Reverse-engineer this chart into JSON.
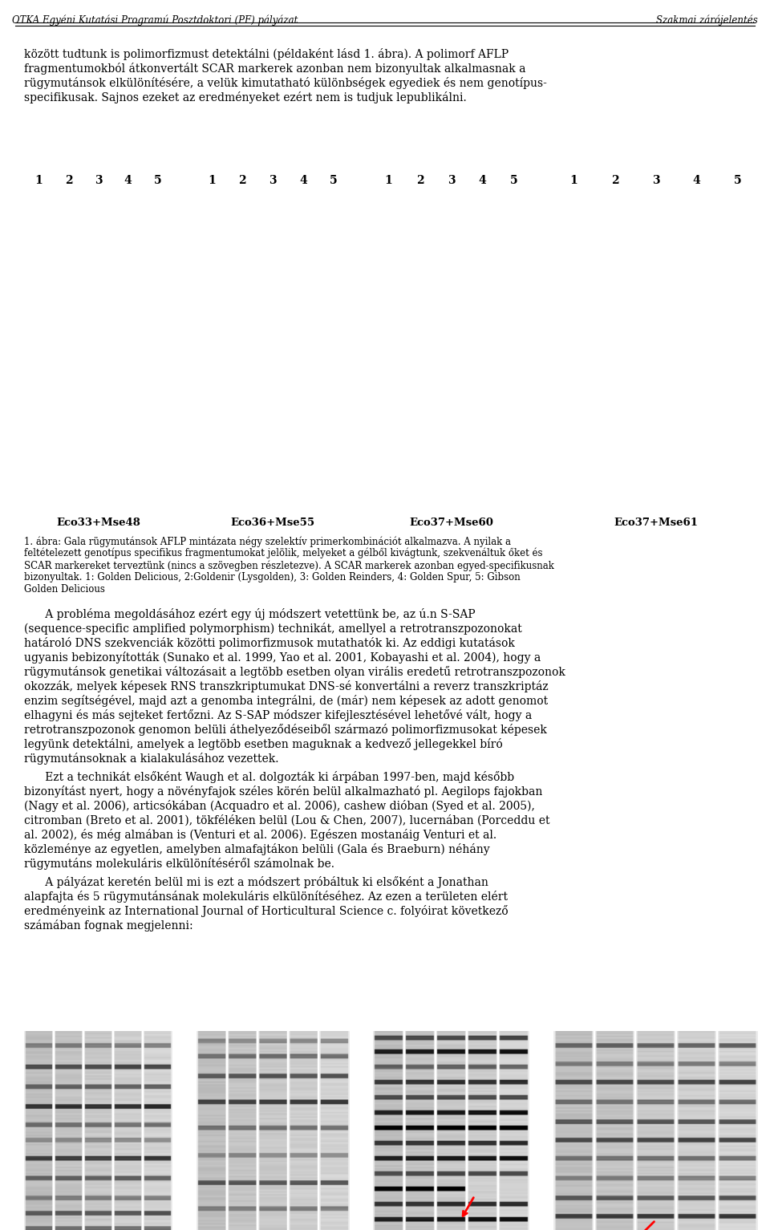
{
  "header_left": "OTKA Egyéni Kutatási Programú Posztdoktori (PF) pályázat",
  "header_right": "Szakmai zárójelentés",
  "intro_text": "között tudtunk is polimorfizmust detektálni (példaként lásd 1. ábra). A polimorf AFLP fragmentumokból átkonvertált SCAR markerek azonban nem bizonyultak alkalmasnak a rügymutánsok elkülönítésére, a velük kimutatható különbségek egyediek és nem genotípus-specifikusak. Sajnos ezeket az eredményeket ezért nem is tudjuk lepublikálni.",
  "lane_labels": [
    "1",
    "2",
    "3",
    "4",
    "5"
  ],
  "gel_labels": [
    "Eco33+Mse48",
    "Eco36+Mse55",
    "Eco37+Mse60",
    "Eco37+Mse61"
  ],
  "figure_caption": "1. ábra: Gala rügymutánsok AFLP mintázata négy szelektív primerkombinációt alkalmazva. A nyilak a feltételezett genotípus specifikus fragmentumokat jelölik, melyeket a gélből kivágtunk, szekvenáltuk őket és SCAR markereket terveztünk (nincs a szövegben részletezve). A SCAR markerek azonban egyed-specifikusnak bizonyultak. 1: Golden Delicious, 2:Goldenir (Lysgolden), 3: Golden Reinders, 4: Golden Spur, 5: Gibson Golden Delicious",
  "body_text_1": "A probléma megoldásához ezért egy új módszert vetettünk be, az ú.n S-SAP (sequence-specific amplified polymorphism) technikát, amellyel a retrotranszpozonokat határoló DNS szekvenciák közötti polimorfizmusok mutathatók ki. Az eddigi kutatások ugyanis bebizonyították (Sunako et al. 1999, Yao et al. 2001, Kobayashi et al. 2004), hogy a rügymutánsok genetikai változásait a legtöbb esetben olyan virális eredetű retrotranszpozonok okozzák, melyek képesek RNS transzkriptumukat DNS-sé konvertálni a reverz transzkriptáz enzim segítségével, majd azt a genomba integrálni, de (már) nem képesek az adott genomot elhagyni és más sejteket fertőzni. Az S-SAP módszer kifejlesztésével lehetővé vált, hogy a retrotranszpozonok genomon belüli áthelyeződéseiből származó polimorfizmusokat képesek legyünk detektálni, amelyek a legtöbb esetben maguknak a kedvező jellegekkel bíró rügymutánsoknak a kialakulásához vezettek.",
  "body_text_2": "Ezt a technikát elsőként Waugh et al. dolgozták ki árpában 1997-ben, majd később bizonyítást nyert, hogy a növényfajok széles körén belül alkalmazható pl. Aegilops fajokban (Nagy et al. 2006), articsókában (Acquadro et al. 2006), cashew dióban (Syed et al. 2005), citromban (Breto et al. 2001), tökféléken belül (Lou & Chen, 2007), lucernában (Porceddu et al. 2002), és még almában is (Venturi et al. 2006). Egészen mostanáig Venturi et al. közleménye az egyetlen, amelyben almafajtákon belüli (Gala és Braeburn) néhány rügymutáns molekuláris elkülönítéséről számolnak be.",
  "body_text_3": "A pályázat keretén belül mi is ezt a módszert próbáltuk ki elsőként a Jonathan alapfajta és 5 rügymutánsának molekuláris elkülönítéséhez. Az ezen a területen elért eredményeink az International Journal of Horticultural Science c. folyóirat következő számában fognak megjelenni:",
  "bg_color": "#ffffff",
  "text_color": "#000000",
  "header_font_size": 9,
  "body_font_size": 10
}
